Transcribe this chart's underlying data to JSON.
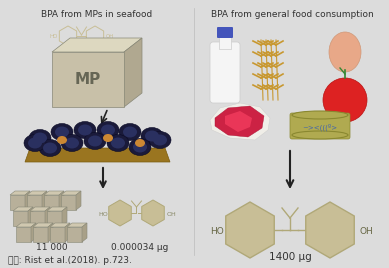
{
  "background_color": "#dcdcdc",
  "title_left": "BPA from MPs in seafood",
  "title_right": "BPA from general food consumption",
  "label_left_1": "11 000",
  "label_left_2": "0.000034 μg",
  "label_right": "1400 μg",
  "citation": "자료: Rist et al.(2018). p.723.",
  "title_fontsize": 6.5,
  "label_fontsize": 6.5,
  "citation_fontsize": 6.5,
  "mp_box_front": "#c8c0a8",
  "mp_box_top": "#ddd8c0",
  "mp_box_right": "#b0a890",
  "mp_text": "MP",
  "bpa_color": "#c8be96",
  "arrow_color": "#222222",
  "cube_front": "#b8b09a",
  "cube_top": "#d0c8b0",
  "cube_right": "#a8a088",
  "mussel_dark": "#1a1a3a",
  "mussel_mid": "#2a3060",
  "mussel_orange": "#cc8833",
  "mussel_bowl": "#9a7520",
  "meat_outer": "#e8f0e8",
  "meat_color": "#cc2244",
  "meat_inner": "#ff4466",
  "can_body": "#8a8830",
  "can_rim": "#b0aa50",
  "fish_color": "#4466aa",
  "milk_body": "#f5f5f5",
  "milk_cap": "#4455bb",
  "wheat_color": "#c89830",
  "egg_color": "#e8a888",
  "tomato_color": "#dd2222",
  "tomato_stem": "#338833"
}
